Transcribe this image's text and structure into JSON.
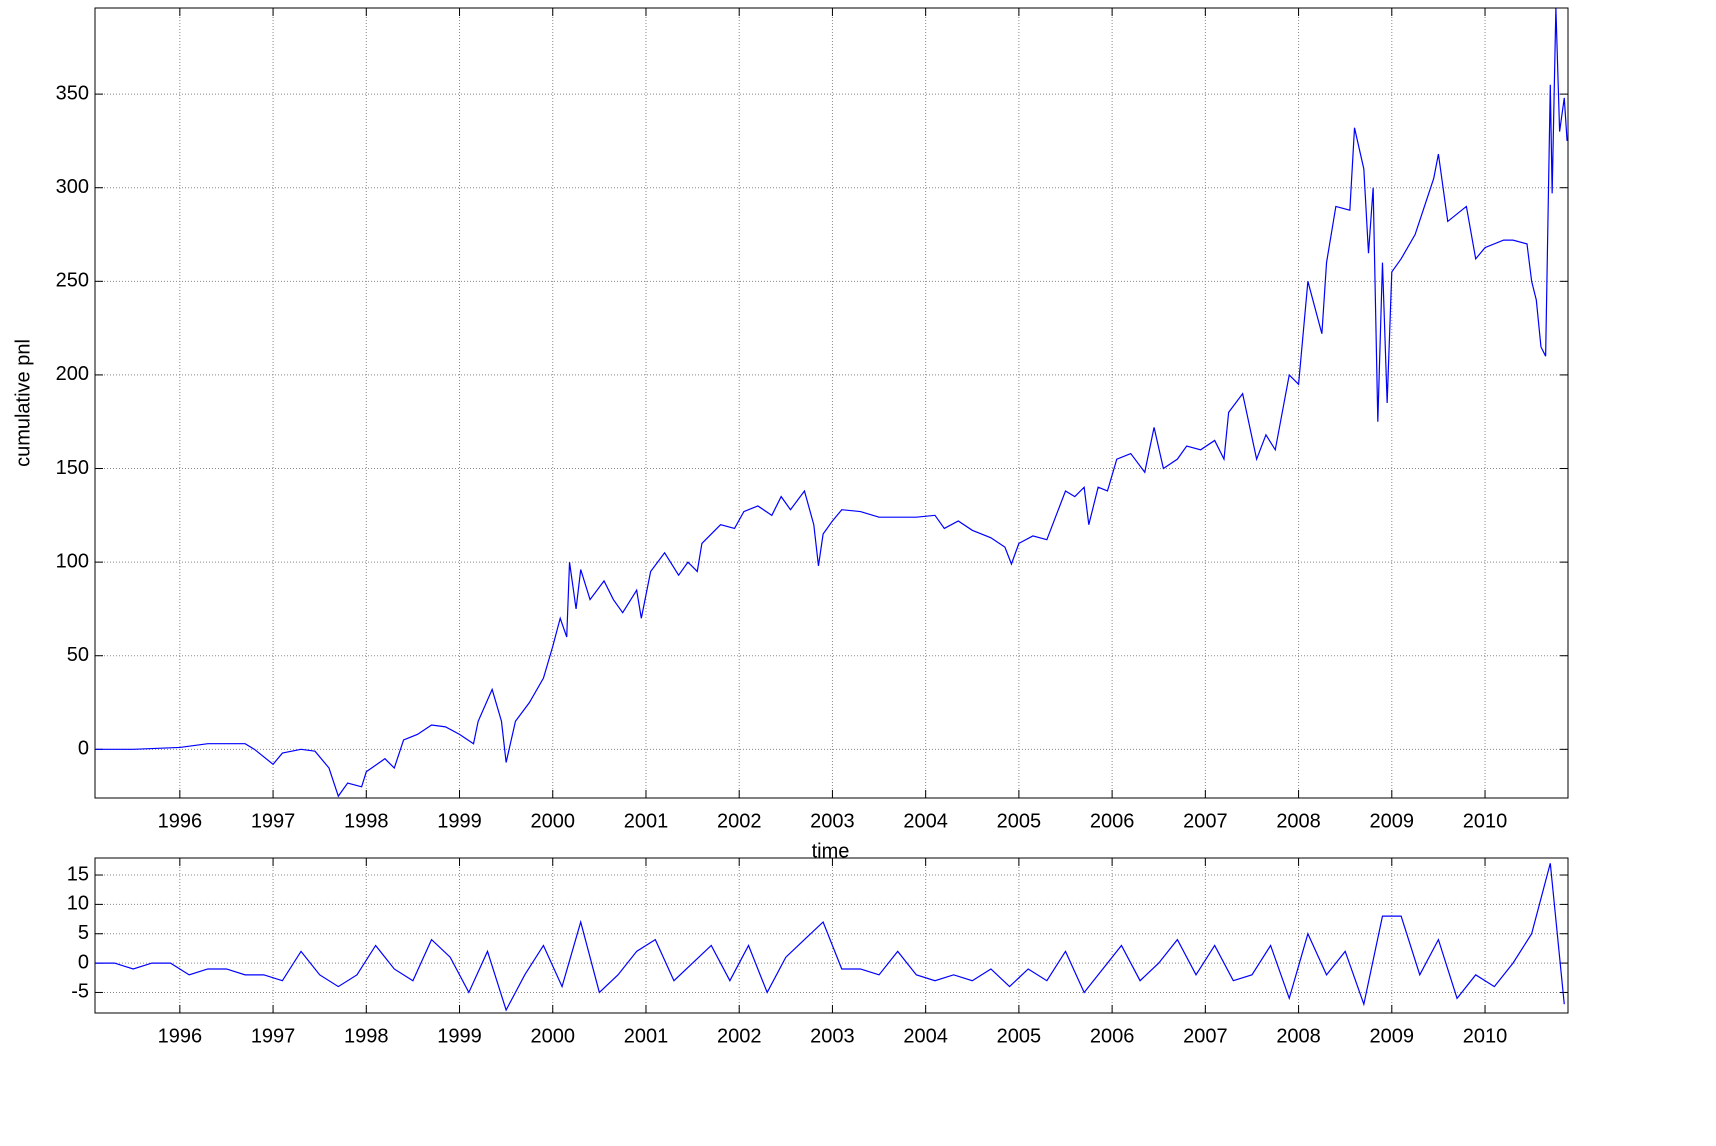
{
  "chart_data": [
    {
      "type": "line",
      "y_label": "cumulative pnl",
      "x_label": "time",
      "color": "#0000ff",
      "grid": true,
      "xlim": [
        1995.09,
        2010.89
      ],
      "xticks": [
        1996,
        1997,
        1998,
        1999,
        2000,
        2001,
        2002,
        2003,
        2004,
        2005,
        2006,
        2007,
        2008,
        2009,
        2010
      ],
      "ylim": [
        -26,
        396
      ],
      "yticks": [
        0,
        50,
        100,
        150,
        200,
        250,
        300,
        350
      ],
      "x": [
        1995.1,
        1995.5,
        1996.0,
        1996.3,
        1996.7,
        1996.8,
        1997.0,
        1997.1,
        1997.3,
        1997.45,
        1997.6,
        1997.7,
        1997.8,
        1997.95,
        1998.0,
        1998.2,
        1998.3,
        1998.4,
        1998.55,
        1998.7,
        1998.85,
        1999.0,
        1999.15,
        1999.2,
        1999.35,
        1999.45,
        1999.5,
        1999.6,
        1999.75,
        1999.9,
        2000.0,
        2000.08,
        2000.15,
        2000.18,
        2000.25,
        2000.3,
        2000.4,
        2000.55,
        2000.65,
        2000.75,
        2000.9,
        2000.95,
        2001.05,
        2001.2,
        2001.35,
        2001.45,
        2001.55,
        2001.6,
        2001.7,
        2001.8,
        2001.95,
        2002.05,
        2002.2,
        2002.35,
        2002.45,
        2002.55,
        2002.7,
        2002.8,
        2002.85,
        2002.9,
        2003.0,
        2003.1,
        2003.3,
        2003.5,
        2003.7,
        2003.9,
        2004.1,
        2004.2,
        2004.35,
        2004.5,
        2004.7,
        2004.85,
        2004.92,
        2005.0,
        2005.15,
        2005.3,
        2005.4,
        2005.5,
        2005.6,
        2005.7,
        2005.75,
        2005.85,
        2005.95,
        2006.05,
        2006.2,
        2006.35,
        2006.45,
        2006.55,
        2006.7,
        2006.8,
        2006.95,
        2007.1,
        2007.2,
        2007.25,
        2007.4,
        2007.55,
        2007.65,
        2007.75,
        2007.9,
        2008.0,
        2008.1,
        2008.25,
        2008.3,
        2008.4,
        2008.55,
        2008.6,
        2008.7,
        2008.75,
        2008.8,
        2008.85,
        2008.9,
        2008.95,
        2009.0,
        2009.1,
        2009.25,
        2009.35,
        2009.45,
        2009.5,
        2009.6,
        2009.8,
        2009.9,
        2010.0,
        2010.2,
        2010.3,
        2010.45,
        2010.5,
        2010.55,
        2010.6,
        2010.65,
        2010.7,
        2010.72,
        2010.76,
        2010.8,
        2010.85,
        2010.88
      ],
      "values": [
        0,
        0,
        1,
        3,
        3,
        0,
        -8,
        -2,
        0,
        -1,
        -10,
        -25,
        -18,
        -20,
        -12,
        -5,
        -10,
        5,
        8,
        13,
        12,
        8,
        3,
        15,
        32,
        15,
        -7,
        15,
        25,
        38,
        55,
        70,
        60,
        100,
        75,
        96,
        80,
        90,
        80,
        73,
        85,
        70,
        95,
        105,
        93,
        100,
        95,
        110,
        115,
        120,
        118,
        127,
        130,
        125,
        135,
        128,
        138,
        120,
        98,
        115,
        122,
        128,
        127,
        124,
        124,
        124,
        125,
        118,
        122,
        117,
        113,
        108,
        99,
        110,
        114,
        112,
        125,
        138,
        135,
        140,
        120,
        140,
        138,
        155,
        158,
        148,
        172,
        150,
        155,
        162,
        160,
        165,
        155,
        180,
        190,
        155,
        168,
        160,
        200,
        195,
        250,
        222,
        260,
        290,
        288,
        332,
        310,
        265,
        300,
        175,
        260,
        185,
        255,
        262,
        275,
        290,
        305,
        318,
        282,
        290,
        262,
        268,
        272,
        272,
        270,
        250,
        240,
        215,
        210,
        355,
        297,
        396,
        330,
        348,
        325
      ]
    },
    {
      "type": "line",
      "color": "#0000ff",
      "grid": true,
      "xlim": [
        1995.09,
        2010.89
      ],
      "xticks": [
        1996,
        1997,
        1998,
        1999,
        2000,
        2001,
        2002,
        2003,
        2004,
        2005,
        2006,
        2007,
        2008,
        2009,
        2010
      ],
      "ylim": [
        -8.5,
        17.9
      ],
      "yticks": [
        -5,
        0,
        5,
        10,
        15
      ],
      "x": [
        1995.1,
        1995.3,
        1995.5,
        1995.7,
        1995.9,
        1996.1,
        1996.3,
        1996.5,
        1996.7,
        1996.9,
        1997.1,
        1997.3,
        1997.5,
        1997.7,
        1997.9,
        1998.1,
        1998.3,
        1998.5,
        1998.7,
        1998.9,
        1999.1,
        1999.3,
        1999.5,
        1999.7,
        1999.9,
        2000.1,
        2000.3,
        2000.5,
        2000.7,
        2000.9,
        2001.1,
        2001.3,
        2001.5,
        2001.7,
        2001.9,
        2002.1,
        2002.3,
        2002.5,
        2002.7,
        2002.9,
        2003.1,
        2003.3,
        2003.5,
        2003.7,
        2003.9,
        2004.1,
        2004.3,
        2004.5,
        2004.7,
        2004.9,
        2005.1,
        2005.3,
        2005.5,
        2005.7,
        2005.9,
        2006.1,
        2006.3,
        2006.5,
        2006.7,
        2006.9,
        2007.1,
        2007.3,
        2007.5,
        2007.7,
        2007.9,
        2008.1,
        2008.3,
        2008.5,
        2008.7,
        2008.9,
        2009.1,
        2009.3,
        2009.5,
        2009.7,
        2009.9,
        2010.1,
        2010.3,
        2010.5,
        2010.7,
        2010.85
      ],
      "values": [
        0,
        0,
        -1,
        0,
        0,
        -2,
        -1,
        -1,
        -2,
        -2,
        -3,
        2,
        -2,
        -4,
        -2,
        3,
        -1,
        -3,
        4,
        1,
        -5,
        2,
        -8,
        -2,
        3,
        -4,
        7,
        -5,
        -2,
        2,
        4,
        -3,
        0,
        3,
        -3,
        3,
        -5,
        1,
        4,
        7,
        -1,
        -1,
        -2,
        2,
        -2,
        -3,
        -2,
        -3,
        -1,
        -4,
        -1,
        -3,
        2,
        -5,
        -1,
        3,
        -3,
        0,
        4,
        -2,
        3,
        -3,
        -2,
        3,
        -6,
        5,
        -2,
        2,
        -7,
        8,
        8,
        -2,
        4,
        -6,
        -2,
        -4,
        0,
        5,
        17,
        -7
      ]
    }
  ]
}
